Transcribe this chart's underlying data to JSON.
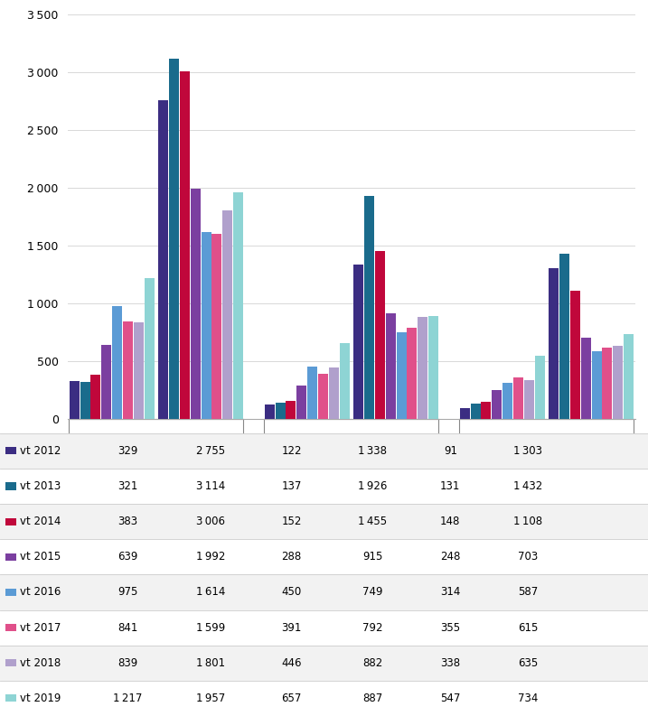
{
  "years": [
    "vt 2012",
    "vt 2013",
    "vt 2014",
    "vt 2015",
    "vt 2016",
    "vt 2017",
    "vt 2018",
    "vt 2019"
  ],
  "colors": [
    "#3B2D82",
    "#1A6B8C",
    "#C0073B",
    "#7B3FA0",
    "#5B9BD5",
    "#E0508A",
    "#B0A0CC",
    "#8ED4D4"
  ],
  "sokande_betalande": [
    329,
    321,
    383,
    639,
    975,
    841,
    839,
    1217
  ],
  "sokande_befriade": [
    2755,
    3114,
    3006,
    1992,
    1614,
    1599,
    1801,
    1957
  ],
  "behoriga_betalande": [
    122,
    137,
    152,
    288,
    450,
    391,
    446,
    657
  ],
  "behoriga_befriade": [
    1338,
    1926,
    1455,
    915,
    749,
    792,
    882,
    887
  ],
  "antagna_betalande": [
    91,
    131,
    148,
    248,
    314,
    355,
    338,
    547
  ],
  "antagna_befriade": [
    1303,
    1432,
    1108,
    703,
    587,
    615,
    635,
    734
  ],
  "ylim": [
    0,
    3500
  ],
  "yticks": [
    0,
    500,
    1000,
    1500,
    2000,
    2500,
    3000,
    3500
  ]
}
